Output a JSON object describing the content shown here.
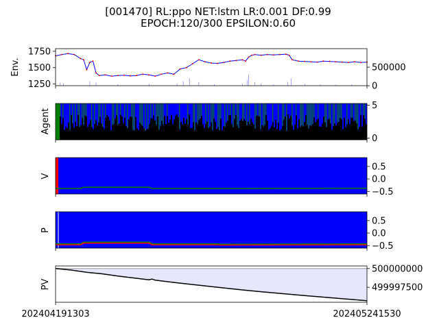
{
  "title": {
    "line1": "[001470] RL:ppo NET:lstm LR:0.001 DF:0.99",
    "line2": "EPOCH:120/300 EPSILON:0.60"
  },
  "colors": {
    "price": "#0000ff",
    "price_dots": "#ff0000",
    "volume": "#0000ff",
    "agent_buy": "#0000ff",
    "agent_green": "#008000",
    "agent_black": "#000000",
    "panel_blue": "#0000ff",
    "panel_red": "#ff0000",
    "line_green": "#008000",
    "pv_line": "#000000",
    "pv_fill": "#e6e6ff"
  },
  "x_ticks": [
    "202404191303",
    "202405241530"
  ],
  "chart_data": [
    {
      "panel": "env",
      "type": "line",
      "ylabel": "Env.",
      "left_ticks": [
        "1250",
        "1500",
        "1750"
      ],
      "left_ylim": [
        1225,
        1790
      ],
      "right_ticks": [
        "0",
        "500000"
      ],
      "right_ylim": [
        0,
        1000000
      ],
      "price_series": [
        [
          0,
          1680
        ],
        [
          0.02,
          1700
        ],
        [
          0.04,
          1715
        ],
        [
          0.06,
          1700
        ],
        [
          0.08,
          1640
        ],
        [
          0.09,
          1620
        ],
        [
          0.1,
          1470
        ],
        [
          0.11,
          1580
        ],
        [
          0.12,
          1600
        ],
        [
          0.13,
          1420
        ],
        [
          0.14,
          1380
        ],
        [
          0.16,
          1390
        ],
        [
          0.18,
          1370
        ],
        [
          0.2,
          1380
        ],
        [
          0.22,
          1385
        ],
        [
          0.24,
          1375
        ],
        [
          0.26,
          1380
        ],
        [
          0.28,
          1400
        ],
        [
          0.3,
          1390
        ],
        [
          0.32,
          1370
        ],
        [
          0.34,
          1400
        ],
        [
          0.36,
          1420
        ],
        [
          0.38,
          1400
        ],
        [
          0.4,
          1480
        ],
        [
          0.42,
          1500
        ],
        [
          0.44,
          1560
        ],
        [
          0.46,
          1620
        ],
        [
          0.48,
          1590
        ],
        [
          0.5,
          1570
        ],
        [
          0.52,
          1565
        ],
        [
          0.54,
          1580
        ],
        [
          0.56,
          1600
        ],
        [
          0.58,
          1610
        ],
        [
          0.6,
          1620
        ],
        [
          0.61,
          1600
        ],
        [
          0.62,
          1660
        ],
        [
          0.63,
          1690
        ],
        [
          0.64,
          1700
        ],
        [
          0.66,
          1690
        ],
        [
          0.68,
          1700
        ],
        [
          0.7,
          1695
        ],
        [
          0.72,
          1700
        ],
        [
          0.74,
          1705
        ],
        [
          0.75,
          1690
        ],
        [
          0.76,
          1620
        ],
        [
          0.78,
          1600
        ],
        [
          0.8,
          1595
        ],
        [
          0.82,
          1590
        ],
        [
          0.84,
          1585
        ],
        [
          0.86,
          1600
        ],
        [
          0.88,
          1595
        ],
        [
          0.9,
          1590
        ],
        [
          0.92,
          1585
        ],
        [
          0.94,
          1580
        ],
        [
          0.96,
          1590
        ],
        [
          0.98,
          1580
        ],
        [
          1.0,
          1585
        ]
      ],
      "volume_spikes": [
        [
          0.015,
          80000
        ],
        [
          0.025,
          60000
        ],
        [
          0.11,
          120000
        ],
        [
          0.13,
          90000
        ],
        [
          0.2,
          40000
        ],
        [
          0.3,
          50000
        ],
        [
          0.39,
          60000
        ],
        [
          0.41,
          120000
        ],
        [
          0.43,
          200000
        ],
        [
          0.46,
          100000
        ],
        [
          0.51,
          40000
        ],
        [
          0.6,
          60000
        ],
        [
          0.615,
          150000
        ],
        [
          0.62,
          300000
        ],
        [
          0.64,
          100000
        ],
        [
          0.66,
          60000
        ],
        [
          0.7,
          40000
        ],
        [
          0.745,
          100000
        ],
        [
          0.756,
          200000
        ],
        [
          0.8,
          50000
        ],
        [
          0.85,
          40000
        ],
        [
          0.9,
          30000
        ],
        [
          0.95,
          30000
        ]
      ]
    },
    {
      "panel": "agent",
      "type": "area",
      "ylabel": "Agent",
      "right_ticks": [
        "0",
        "5"
      ],
      "ylim": [
        -0.25,
        5.25
      ]
    },
    {
      "panel": "value",
      "type": "line",
      "ylabel": "V",
      "right_ticks": [
        "−0.5",
        "0.0",
        "0.5"
      ],
      "ylim": [
        -0.6,
        0.85
      ],
      "series": [
        [
          0,
          -0.38
        ],
        [
          0.08,
          -0.38
        ],
        [
          0.09,
          -0.33
        ],
        [
          0.3,
          -0.33
        ],
        [
          0.31,
          -0.38
        ],
        [
          0.52,
          -0.38
        ],
        [
          0.53,
          -0.38
        ],
        [
          1.0,
          -0.37
        ]
      ]
    },
    {
      "panel": "policy",
      "type": "line",
      "ylabel": "P",
      "right_ticks": [
        "−0.5",
        "0.0",
        "0.5"
      ],
      "ylim": [
        -0.6,
        0.85
      ],
      "series_green": [
        [
          0,
          -0.43
        ],
        [
          0.08,
          -0.43
        ],
        [
          0.09,
          -0.36
        ],
        [
          0.3,
          -0.36
        ],
        [
          0.31,
          -0.43
        ],
        [
          0.52,
          -0.43
        ],
        [
          0.53,
          -0.44
        ],
        [
          1.0,
          -0.43
        ]
      ],
      "series_red": [
        [
          0,
          -0.47
        ],
        [
          0.08,
          -0.47
        ],
        [
          0.09,
          -0.4
        ],
        [
          0.3,
          -0.4
        ],
        [
          0.31,
          -0.47
        ],
        [
          0.52,
          -0.47
        ],
        [
          0.53,
          -0.48
        ],
        [
          1.0,
          -0.47
        ]
      ]
    },
    {
      "panel": "pv",
      "type": "area",
      "ylabel": "PV",
      "right_ticks": [
        "499997500",
        "500000000"
      ],
      "ylim": [
        499995500,
        500000350
      ],
      "series": [
        [
          0,
          500000000
        ],
        [
          0.05,
          499999800
        ],
        [
          0.1,
          499999500
        ],
        [
          0.15,
          499999300
        ],
        [
          0.2,
          499999000
        ],
        [
          0.25,
          499998750
        ],
        [
          0.3,
          499998500
        ],
        [
          0.31,
          499998600
        ],
        [
          0.32,
          499998450
        ],
        [
          0.4,
          499998050
        ],
        [
          0.5,
          499997600
        ],
        [
          0.6,
          499997150
        ],
        [
          0.7,
          499996750
        ],
        [
          0.8,
          499996400
        ],
        [
          0.9,
          499996050
        ],
        [
          1.0,
          499995700
        ]
      ]
    }
  ]
}
